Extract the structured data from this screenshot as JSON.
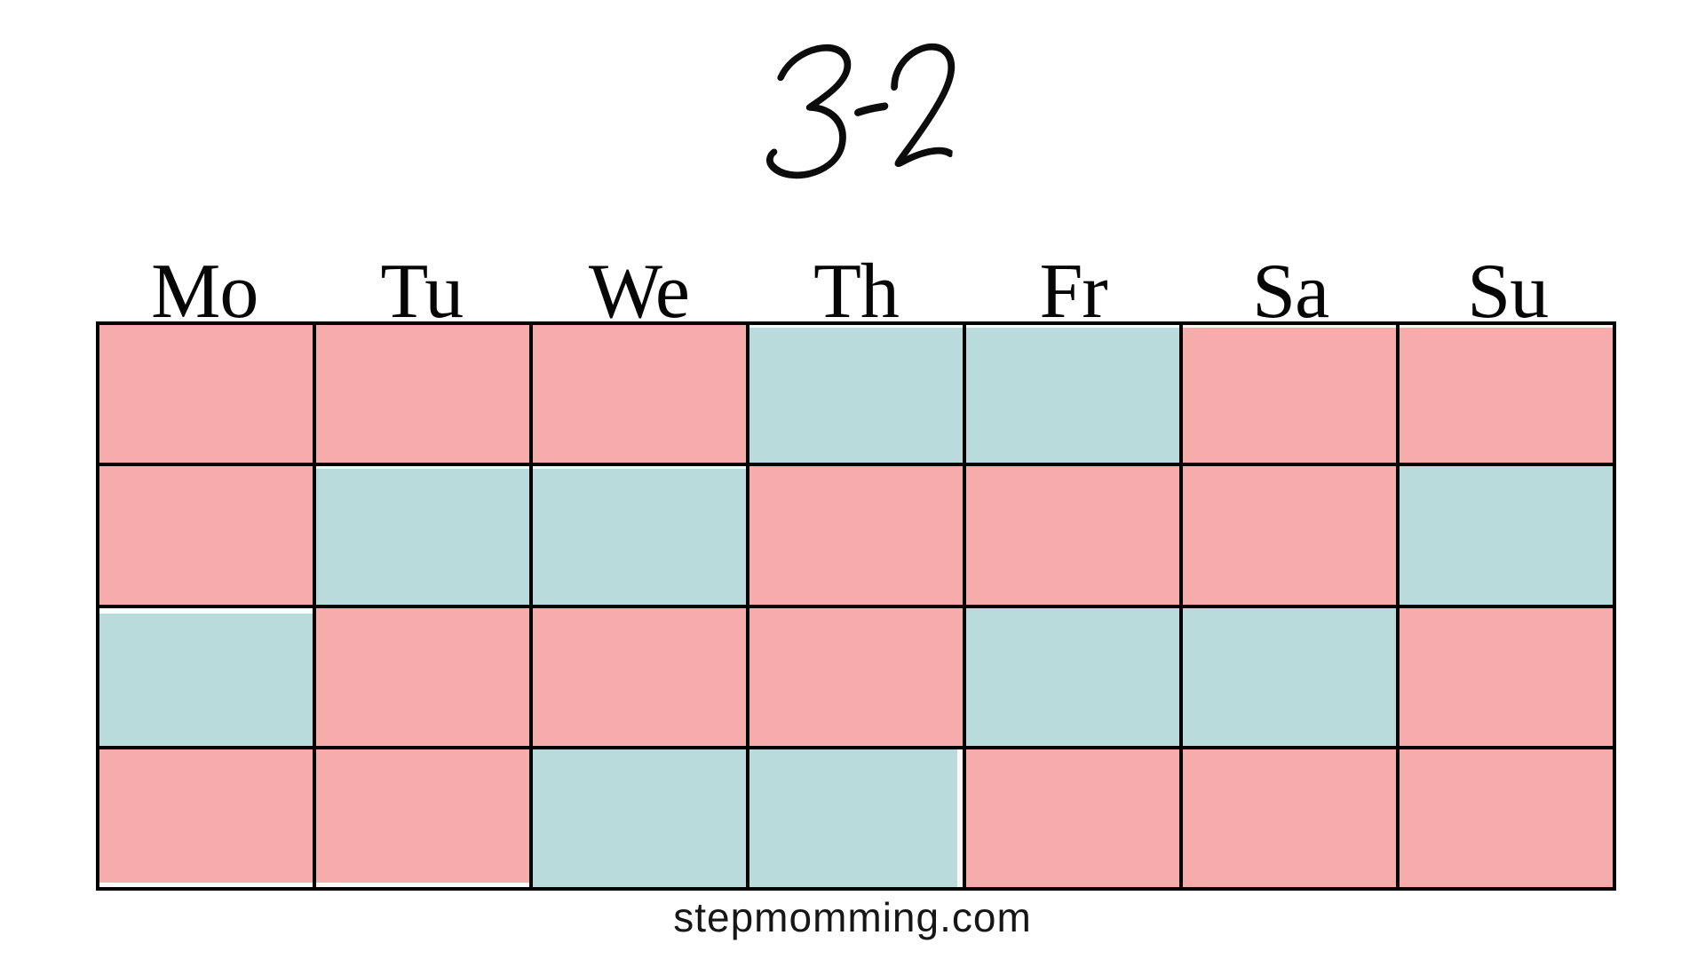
{
  "title": {
    "text": "3-2"
  },
  "calendar": {
    "day_headers": [
      "Mo",
      "Tu",
      "We",
      "Th",
      "Fr",
      "Sa",
      "Su"
    ],
    "weeks": [
      [
        "A",
        "A",
        "A",
        "B",
        "B",
        "A",
        "A"
      ],
      [
        "A",
        "B",
        "B",
        "A",
        "A",
        "A",
        "B"
      ],
      [
        "B",
        "A",
        "A",
        "A",
        "B",
        "B",
        "A"
      ],
      [
        "A",
        "A",
        "B",
        "B",
        "A",
        "A",
        "A"
      ]
    ],
    "cell_colors": {
      "A": "#F7ACAC",
      "B": "#B9DBDC"
    }
  },
  "footer": {
    "website": "stepmomming.com"
  },
  "colors": {
    "background": "#FFFFFF",
    "grid_line": "#000000",
    "text": "#000000",
    "pink": "#F7ACAC",
    "blue": "#B9DBDC"
  }
}
